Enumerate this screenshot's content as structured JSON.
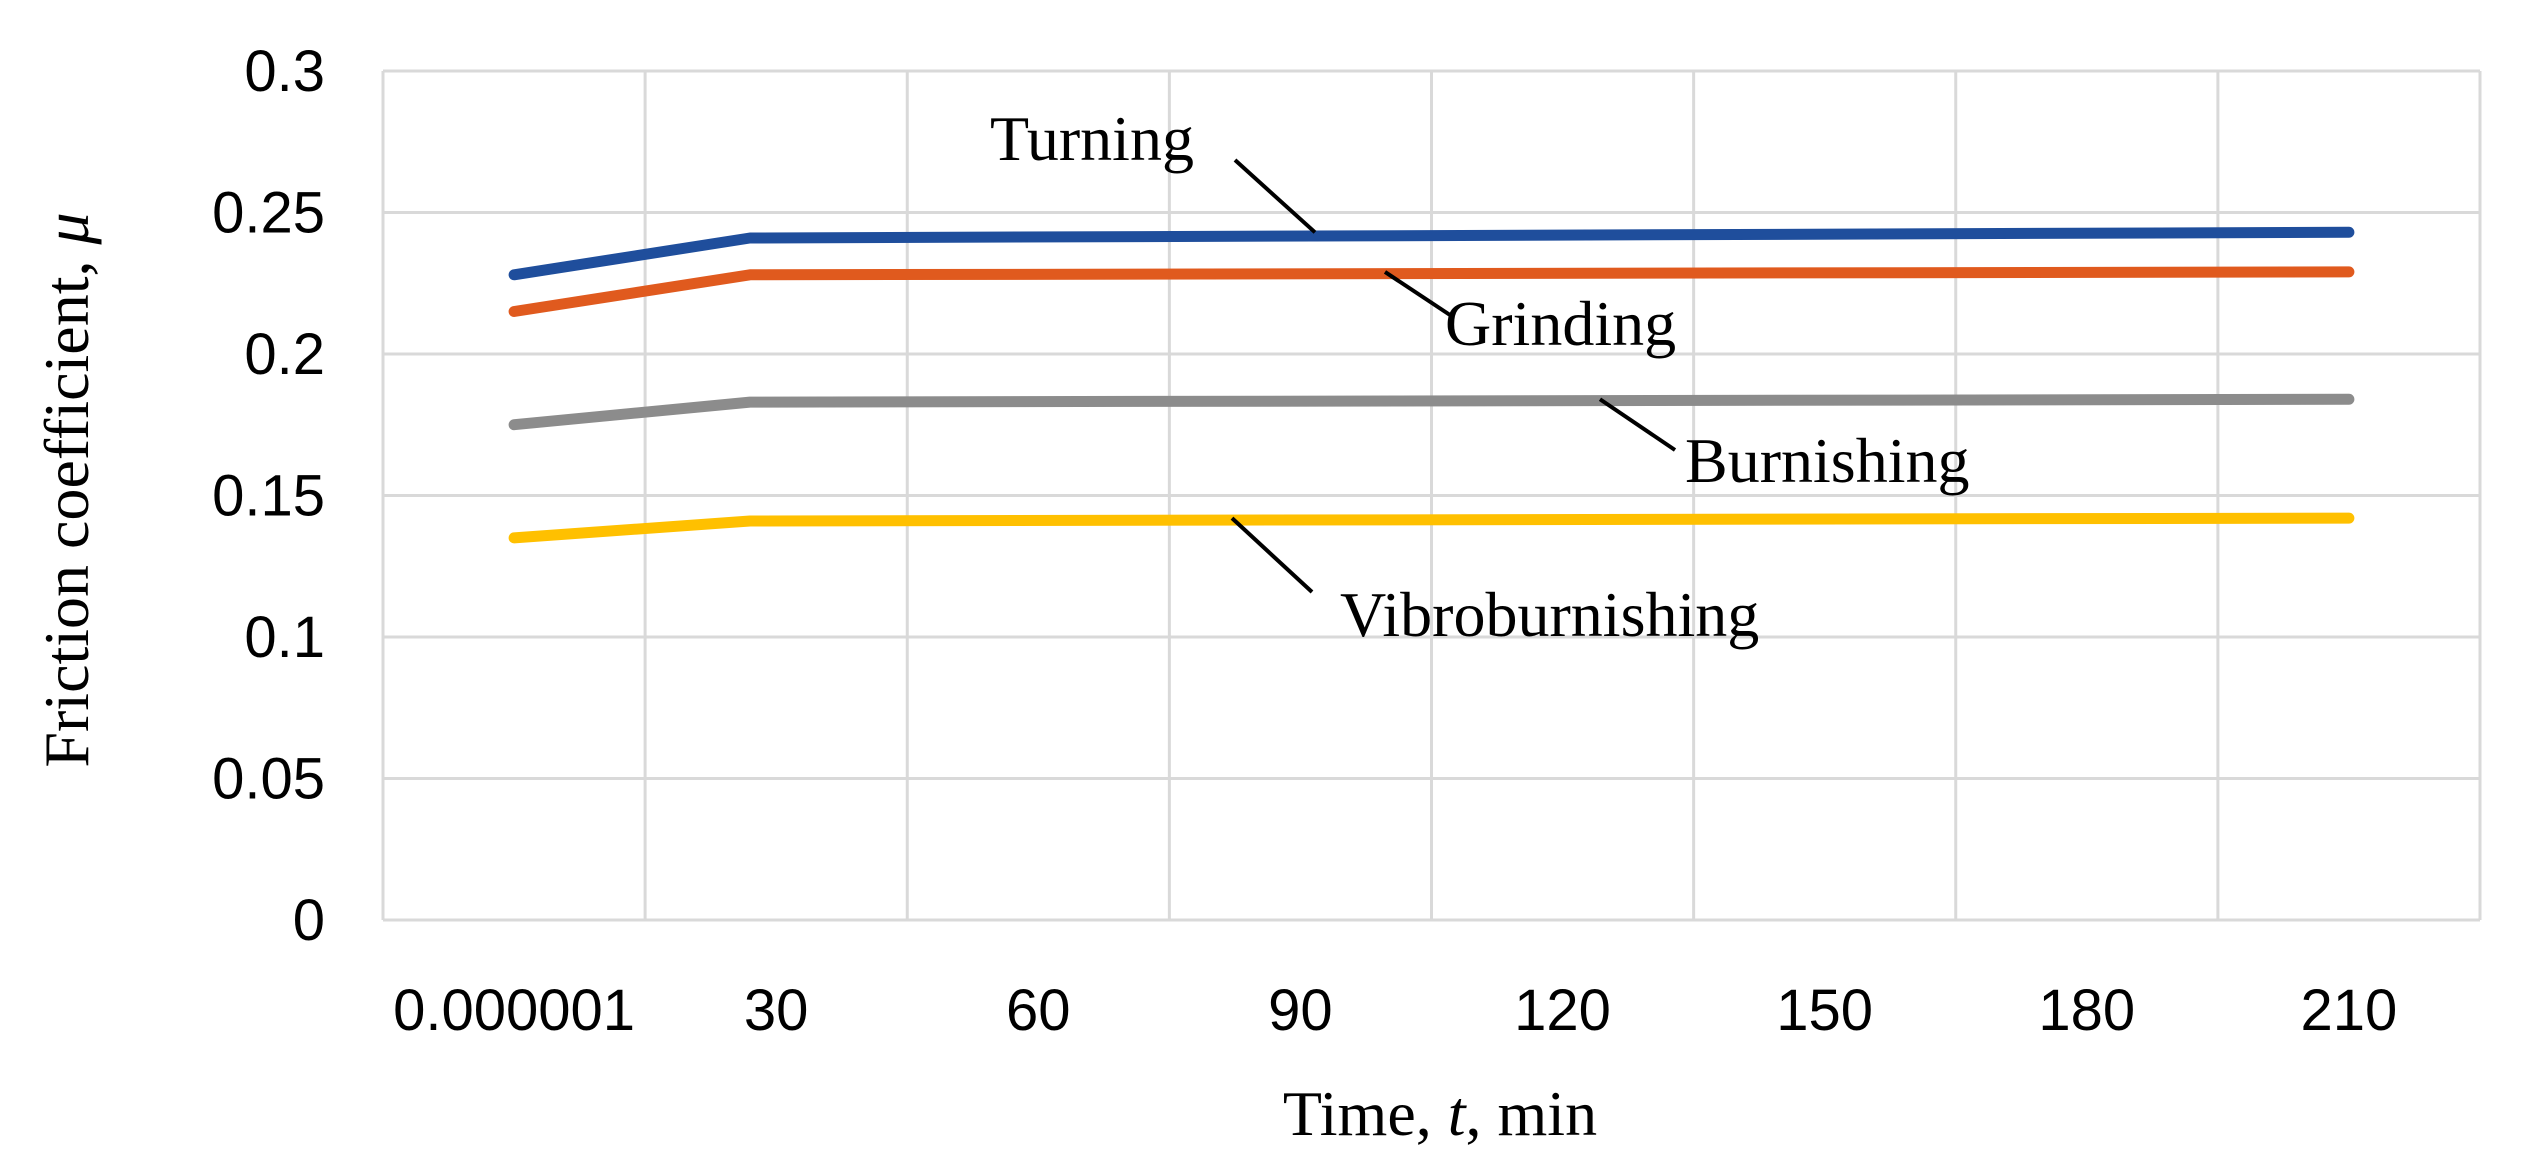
{
  "chart_data": {
    "type": "line",
    "categories": [
      "0.000001",
      "30",
      "60",
      "90",
      "120",
      "150",
      "180",
      "210"
    ],
    "x_positions": [
      0,
      1,
      2,
      3,
      4,
      5,
      6,
      7
    ],
    "ylabel": "Friction coefficient, μ",
    "xlabel": "Time, t, min",
    "xlabel_parts": {
      "pre": "Time, ",
      "italic": "t",
      "post": ", min"
    },
    "ylabel_parts": {
      "pre": "Friction coefficient, ",
      "italic": "μ"
    },
    "ylim": [
      0,
      0.3
    ],
    "yticks": [
      "0",
      "0.05",
      "0.1",
      "0.15",
      "0.2",
      "0.25",
      "0.3"
    ],
    "ytick_values": [
      0,
      0.05,
      0.1,
      0.15,
      0.2,
      0.25,
      0.3
    ],
    "grid": true,
    "legend": "inline labels",
    "series": [
      {
        "name": "Turning",
        "color": "#1f4e9c",
        "x": [
          0,
          0.9,
          7
        ],
        "values": [
          0.228,
          0.241,
          0.243
        ]
      },
      {
        "name": "Grinding",
        "color": "#e05a1e",
        "x": [
          0,
          0.9,
          7
        ],
        "values": [
          0.215,
          0.228,
          0.229
        ]
      },
      {
        "name": "Burnishing",
        "color": "#8c8c8c",
        "x": [
          0,
          0.9,
          7
        ],
        "values": [
          0.175,
          0.183,
          0.184
        ]
      },
      {
        "name": "Vibroburnishing",
        "color": "#ffc000",
        "x": [
          0,
          0.9,
          7
        ],
        "values": [
          0.135,
          0.141,
          0.142
        ]
      }
    ]
  }
}
